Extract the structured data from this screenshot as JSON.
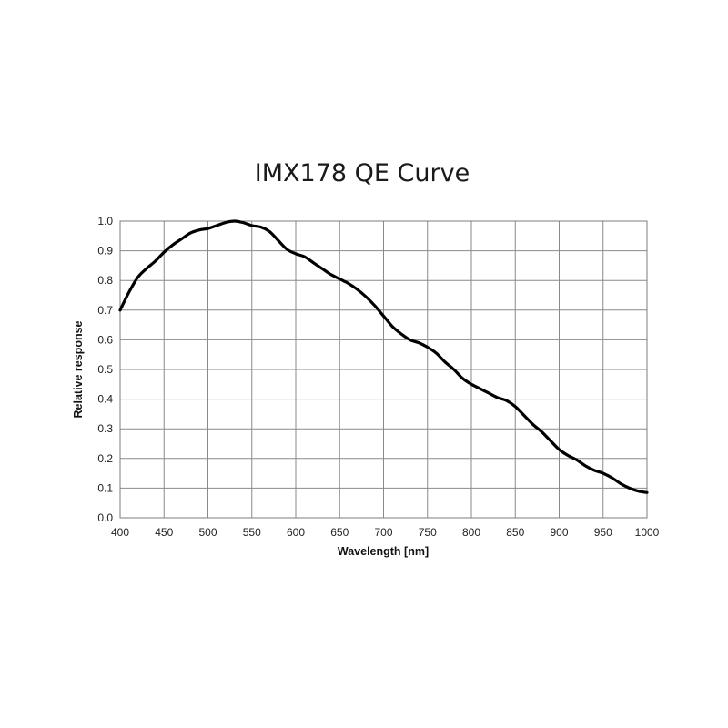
{
  "chart_data": {
    "type": "line",
    "title": "IMX178 QE Curve",
    "xlabel": "Wavelength [nm]",
    "ylabel": "Relative response",
    "xlim": [
      400,
      1000
    ],
    "ylim": [
      0.0,
      1.0
    ],
    "grid": true,
    "x_ticks": [
      "400",
      "450",
      "500",
      "550",
      "600",
      "650",
      "700",
      "750",
      "800",
      "850",
      "900",
      "950",
      "1000"
    ],
    "y_ticks": [
      "0.0",
      "0.1",
      "0.2",
      "0.3",
      "0.4",
      "0.5",
      "0.6",
      "0.7",
      "0.8",
      "0.9",
      "1.0"
    ],
    "series": [
      {
        "name": "Relative response",
        "color": "#000000",
        "x": [
          400,
          410,
          420,
          430,
          440,
          450,
          460,
          470,
          480,
          490,
          500,
          510,
          520,
          530,
          540,
          550,
          560,
          570,
          580,
          590,
          600,
          610,
          620,
          630,
          640,
          650,
          660,
          670,
          680,
          690,
          700,
          710,
          720,
          730,
          740,
          750,
          760,
          770,
          780,
          790,
          800,
          810,
          820,
          830,
          840,
          850,
          860,
          870,
          880,
          890,
          900,
          910,
          920,
          930,
          940,
          950,
          960,
          970,
          980,
          990,
          1000
        ],
        "values": [
          0.7,
          0.76,
          0.81,
          0.84,
          0.865,
          0.895,
          0.92,
          0.94,
          0.96,
          0.97,
          0.975,
          0.985,
          0.995,
          1.0,
          0.995,
          0.985,
          0.98,
          0.965,
          0.935,
          0.905,
          0.89,
          0.88,
          0.86,
          0.84,
          0.82,
          0.805,
          0.79,
          0.77,
          0.745,
          0.715,
          0.68,
          0.645,
          0.62,
          0.6,
          0.59,
          0.575,
          0.555,
          0.525,
          0.5,
          0.47,
          0.45,
          0.435,
          0.42,
          0.405,
          0.395,
          0.375,
          0.345,
          0.315,
          0.29,
          0.26,
          0.23,
          0.21,
          0.195,
          0.175,
          0.16,
          0.15,
          0.135,
          0.115,
          0.1,
          0.09,
          0.085
        ]
      }
    ]
  }
}
